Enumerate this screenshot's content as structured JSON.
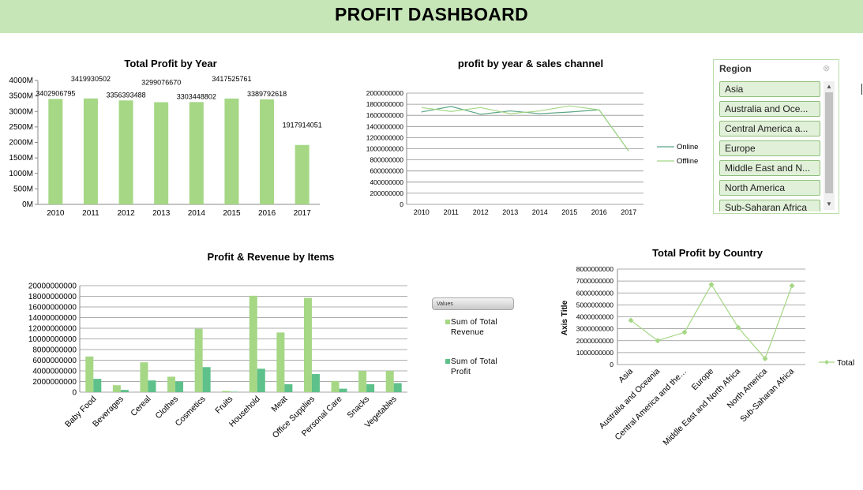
{
  "dashboard": {
    "title": "PROFIT DASHBOARD"
  },
  "colors": {
    "banner": "#c6e6b8",
    "light_green": "#a5d785",
    "dark_green": "#5ec08a"
  },
  "chart_data": [
    {
      "id": "profit-by-year",
      "type": "bar",
      "title": "Total Profit by Year",
      "categories": [
        "2010",
        "2011",
        "2012",
        "2013",
        "2014",
        "2015",
        "2016",
        "2017"
      ],
      "values": [
        3402906795,
        3419930502,
        3356393488,
        3299076670,
        3303448802,
        3417525761,
        3389792618,
        1917914051
      ],
      "data_labels": [
        "3402906795",
        "3419930502",
        "3356393488",
        "3299076670",
        "3303448802",
        "3417525761",
        "3389792618",
        "1917914051"
      ],
      "ylim": [
        0,
        4000000000
      ],
      "ytick_labels": [
        "0M",
        "500M",
        "1000M",
        "1500M",
        "2000M",
        "2500M",
        "3000M",
        "3500M",
        "4000M"
      ],
      "color": "#a5d785"
    },
    {
      "id": "profit-by-channel",
      "type": "line",
      "title": "profit by year & sales channel",
      "categories": [
        "2010",
        "2011",
        "2012",
        "2013",
        "2014",
        "2015",
        "2016",
        "2017"
      ],
      "series": [
        {
          "name": "Online",
          "values": [
            1660000000,
            1760000000,
            1620000000,
            1680000000,
            1630000000,
            1660000000,
            1700000000,
            960000000
          ],
          "color": "#5aa585"
        },
        {
          "name": "Offline",
          "values": [
            1740000000,
            1670000000,
            1740000000,
            1630000000,
            1680000000,
            1770000000,
            1700000000,
            960000000
          ],
          "color": "#a5d785"
        }
      ],
      "ylim": [
        0,
        2000000000
      ],
      "ytick_labels": [
        "0",
        "200000000",
        "400000000",
        "600000000",
        "800000000",
        "1000000000",
        "1200000000",
        "1400000000",
        "1600000000",
        "1800000000",
        "2000000000"
      ],
      "grid": true,
      "legend": "right"
    },
    {
      "id": "profit-revenue-items",
      "type": "bar",
      "title": "Profit & Revenue by Items",
      "categories": [
        "Baby Food",
        "Beverages",
        "Cereal",
        "Clothes",
        "Cosmetics",
        "Fruits",
        "Household",
        "Meat",
        "Office Supplies",
        "Personal Care",
        "Snacks",
        "Vegetables"
      ],
      "series": [
        {
          "name": "Sum of Total Revenue",
          "values": [
            6700000000,
            1300000000,
            5600000000,
            2900000000,
            11900000000,
            230000000,
            18100000000,
            11200000000,
            17700000000,
            2100000000,
            4000000000,
            4000000000
          ],
          "color": "#a5d785"
        },
        {
          "name": "Sum of Total Profit",
          "values": [
            2500000000,
            420000000,
            2200000000,
            2000000000,
            4700000000,
            90000000,
            4400000000,
            1500000000,
            3400000000,
            650000000,
            1500000000,
            1700000000
          ],
          "color": "#5ec08a"
        }
      ],
      "ylim": [
        0,
        20000000000
      ],
      "ytick_labels": [
        "0",
        "2000000000",
        "4000000000",
        "6000000000",
        "8000000000",
        "10000000000",
        "12000000000",
        "14000000000",
        "16000000000",
        "18000000000",
        "20000000000"
      ],
      "grid": true,
      "legend": "right",
      "legend_title": "Values"
    },
    {
      "id": "profit-by-country",
      "type": "line",
      "title": "Total Profit by Country",
      "categories": [
        "Asia",
        "Australia and Oceania",
        "Central America and the…",
        "Europe",
        "Middle East and North Africa",
        "North America",
        "Sub-Saharan Africa"
      ],
      "series": [
        {
          "name": "Total",
          "values": [
            3700000000,
            2000000000,
            2700000000,
            6700000000,
            3100000000,
            500000000,
            6600000000
          ],
          "color": "#a5d785"
        }
      ],
      "ylim": [
        0,
        8000000000
      ],
      "ytick_labels": [
        "0",
        "1000000000",
        "2000000000",
        "3000000000",
        "4000000000",
        "5000000000",
        "6000000000",
        "7000000000",
        "8000000000"
      ],
      "ylabel": "Axis Title",
      "grid": true,
      "legend": "right"
    }
  ],
  "slicer": {
    "title": "Region",
    "clear_icon": "clear-filter-icon",
    "items": [
      "Asia",
      "Australia and Oce...",
      "Central America a...",
      "Europe",
      "Middle East and N...",
      "North America",
      "Sub-Saharan Africa"
    ],
    "scroll_up": "▲",
    "scroll_down": "▼"
  },
  "values_button": {
    "label": "Values"
  }
}
